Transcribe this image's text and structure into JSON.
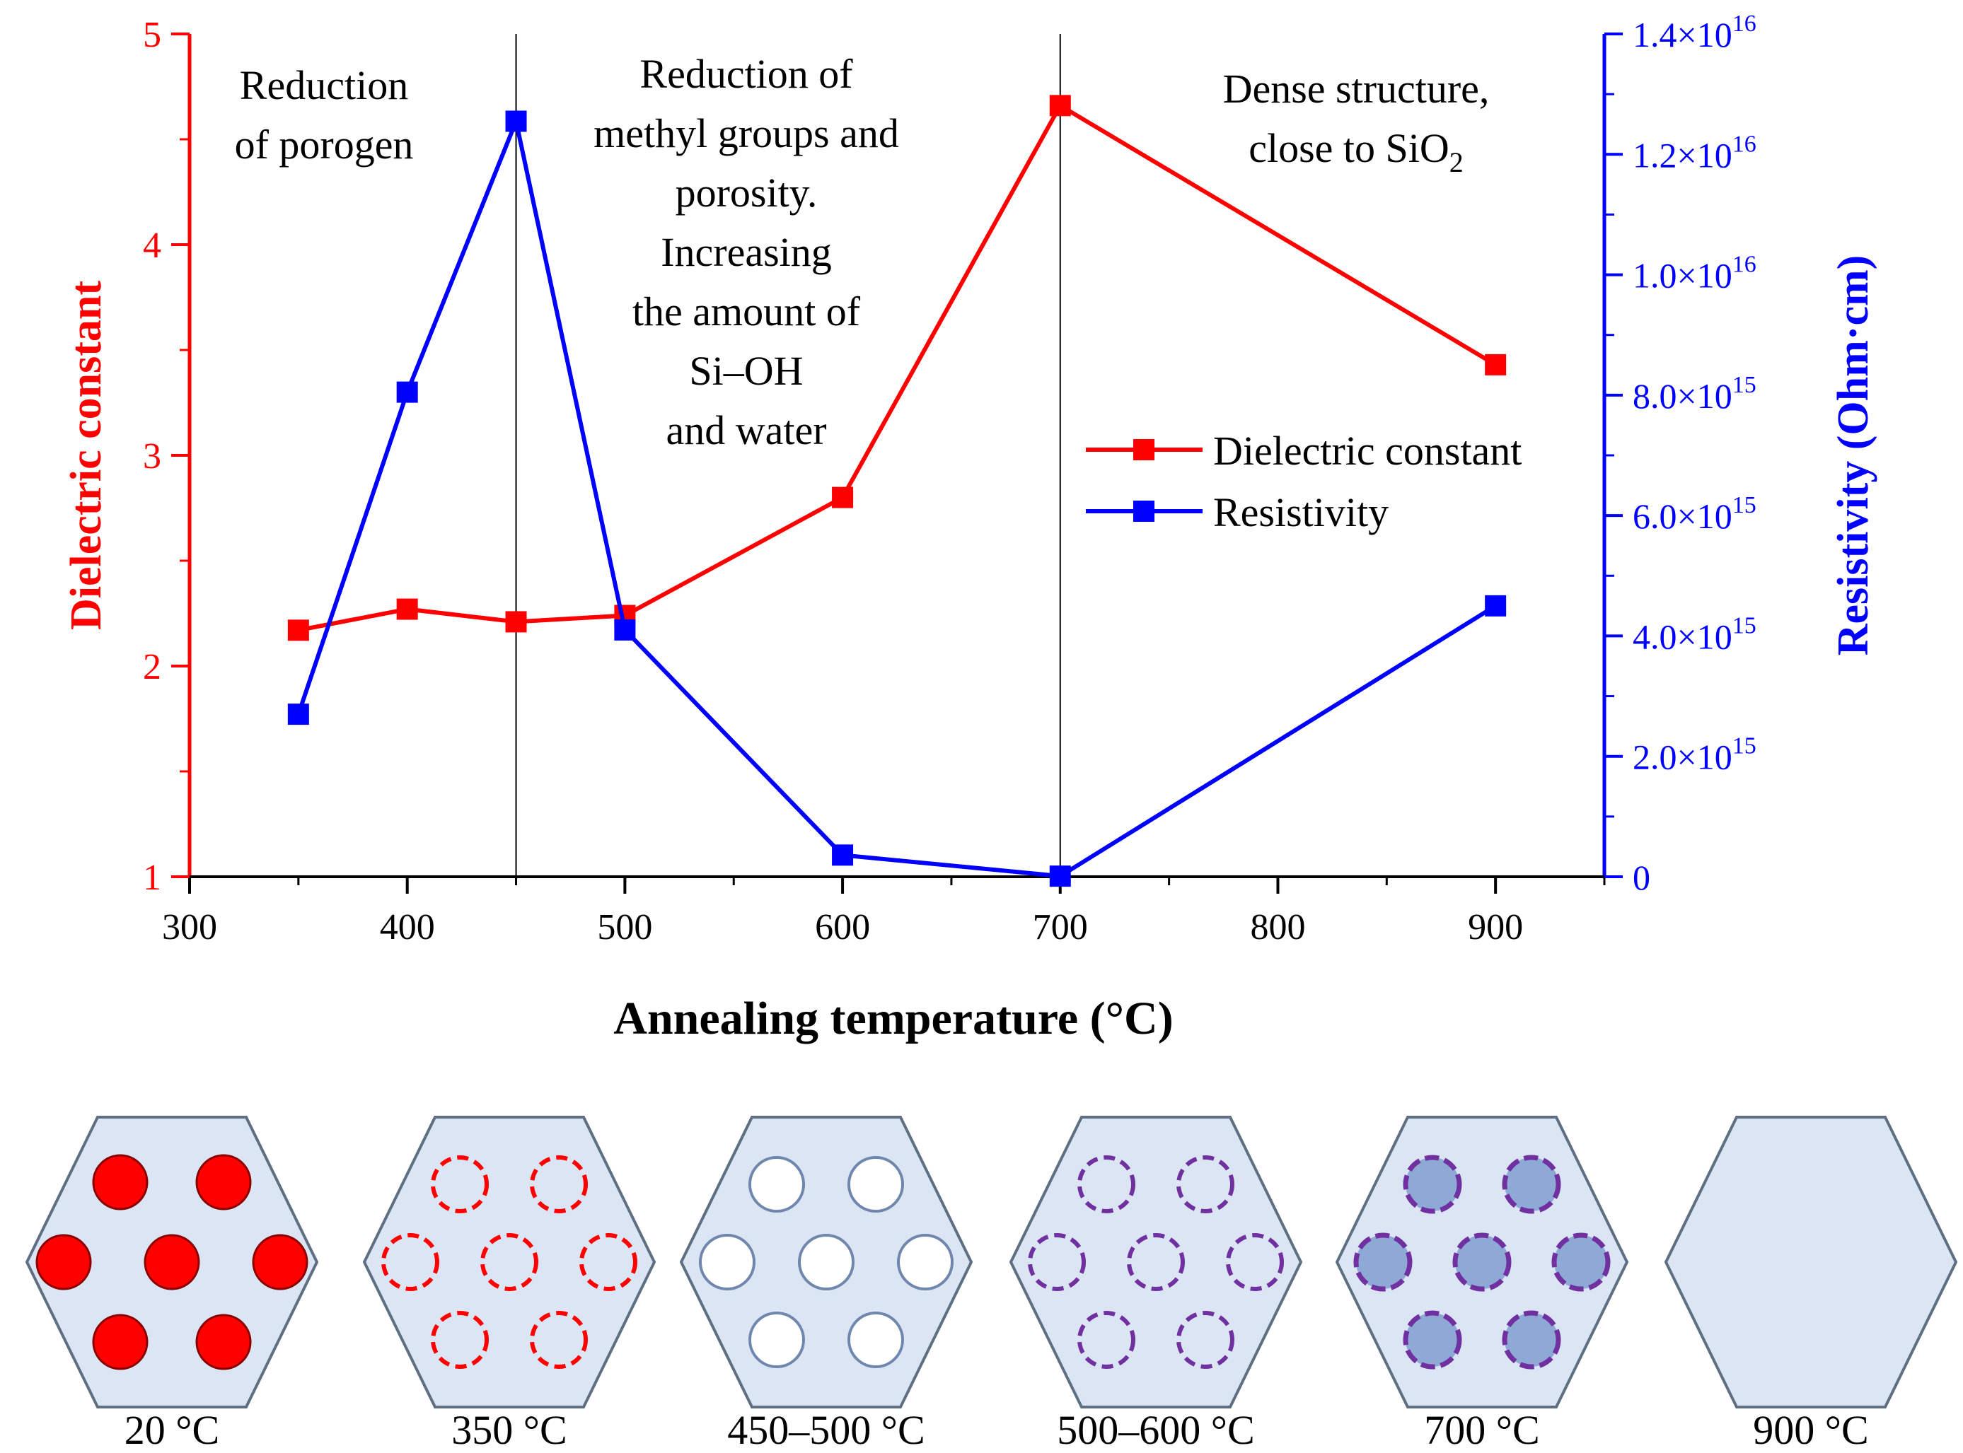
{
  "colors": {
    "dielectric": "#ff0000",
    "resistivity": "#0000ff",
    "divider": "#000000",
    "hex_fill": "#dbe5f4",
    "hex_stroke": "#5f6f82",
    "pore_red": "#ff0000",
    "pore_white_stroke": "#6f86ad",
    "pore_purple": "#7030a0",
    "pore_blue_fill": "#8fa9d6"
  },
  "chart_data": {
    "type": "line",
    "xlabel": "Annealing temperature (°C)",
    "ylabel_left": "Dielectric constant",
    "ylabel_right": "Resistivity (Ohm·cm)",
    "xlim": [
      300,
      950
    ],
    "x_ticks": [
      300,
      400,
      500,
      600,
      700,
      800,
      900
    ],
    "ylim_left": [
      1,
      5
    ],
    "y_ticks_left": [
      1,
      2,
      3,
      4,
      5
    ],
    "ylim_right": [
      0,
      1.4e+16
    ],
    "y_ticks_right": [
      {
        "value": 0,
        "mant": "0",
        "exp": ""
      },
      {
        "value": 2000000000000000.0,
        "mant": "2.0×10",
        "exp": "15"
      },
      {
        "value": 4000000000000000.0,
        "mant": "4.0×10",
        "exp": "15"
      },
      {
        "value": 6000000000000000.0,
        "mant": "6.0×10",
        "exp": "15"
      },
      {
        "value": 8000000000000000.0,
        "mant": "8.0×10",
        "exp": "15"
      },
      {
        "value": 1e+16,
        "mant": "1.0×10",
        "exp": "16"
      },
      {
        "value": 1.2e+16,
        "mant": "1.2×10",
        "exp": "16"
      },
      {
        "value": 1.4e+16,
        "mant": "1.4×10",
        "exp": "16"
      }
    ],
    "series": [
      {
        "name": "Dielectric constant",
        "axis": "left",
        "x": [
          350,
          400,
          450,
          500,
          600,
          700,
          900
        ],
        "values": [
          2.17,
          2.27,
          2.21,
          2.24,
          2.8,
          4.66,
          3.43
        ]
      },
      {
        "name": "Resistivity",
        "axis": "right",
        "x": [
          350,
          400,
          450,
          500,
          600,
          700,
          900
        ],
        "values": [
          2700000000000000.0,
          8050000000000000.0,
          1.255e+16,
          4100000000000000.0,
          360000000000000.0,
          10000000000000.0,
          4500000000000000.0
        ]
      }
    ],
    "dividers_x": [
      450,
      700
    ],
    "legend_position": "center-right",
    "region_labels": [
      {
        "lines": [
          "Reduction",
          "of porogen"
        ]
      },
      {
        "lines": [
          "Reduction of",
          "methyl groups and",
          "porosity.",
          "Increasing",
          "the amount of",
          "Si–OH",
          "and water"
        ]
      },
      {
        "lines": [
          "Dense structure,",
          "close to SiO"
        ],
        "subscript": "2"
      }
    ]
  },
  "diagrams": [
    {
      "label": "20 °C",
      "pore_style": "solid-red"
    },
    {
      "label": "350 °C",
      "pore_style": "dashed-red"
    },
    {
      "label": "450–500 °C",
      "pore_style": "empty"
    },
    {
      "label": "500–600 °C",
      "pore_style": "dashed-purple"
    },
    {
      "label": "700 °C",
      "pore_style": "filled-purple"
    },
    {
      "label": "900 °C",
      "pore_style": "none"
    }
  ]
}
